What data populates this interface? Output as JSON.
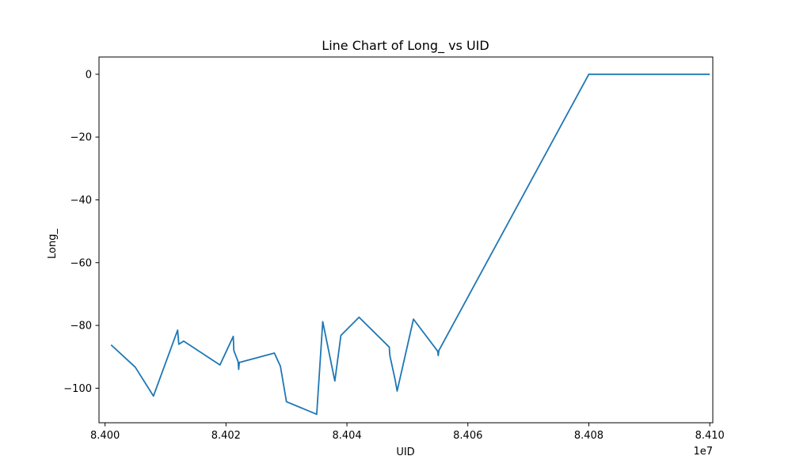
{
  "chart_data": {
    "type": "line",
    "title": "Line Chart of Long_ vs UID",
    "xlabel": "UID",
    "ylabel": "Long_",
    "x_offset_label": "1e7",
    "xlim": [
      8399900,
      8410050
    ],
    "ylim": [
      -111,
      5.5
    ],
    "x_ticks": [
      8400000,
      8402000,
      8404000,
      8406000,
      8408000,
      8410000
    ],
    "x_tick_labels": [
      "8.400",
      "8.402",
      "8.404",
      "8.406",
      "8.408",
      "8.410"
    ],
    "y_ticks": [
      0,
      -20,
      -40,
      -60,
      -80,
      -100
    ],
    "y_tick_labels": [
      "0",
      "−20",
      "−40",
      "−60",
      "−80",
      "−100"
    ],
    "grid": false,
    "series": [
      {
        "color": "#1f77b4",
        "points": [
          [
            8400100,
            -86.2
          ],
          [
            8400500,
            -93.3
          ],
          [
            8400800,
            -102.5
          ],
          [
            8401200,
            -81.5
          ],
          [
            8401220,
            -86.0
          ],
          [
            8401300,
            -85.0
          ],
          [
            8401900,
            -92.6
          ],
          [
            8402120,
            -83.5
          ],
          [
            8402130,
            -88.0
          ],
          [
            8402200,
            -91.5
          ],
          [
            8402210,
            -94.0
          ],
          [
            8402220,
            -91.8
          ],
          [
            8402800,
            -88.8
          ],
          [
            8402900,
            -93.0
          ],
          [
            8403000,
            -104.3
          ],
          [
            8403500,
            -108.3
          ],
          [
            8403600,
            -78.8
          ],
          [
            8403800,
            -97.7
          ],
          [
            8403900,
            -83.2
          ],
          [
            8404200,
            -77.4
          ],
          [
            8404700,
            -86.9
          ],
          [
            8404710,
            -89.6
          ],
          [
            8404800,
            -97.6
          ],
          [
            8404830,
            -100.9
          ],
          [
            8405100,
            -78.0
          ],
          [
            8405500,
            -88.2
          ],
          [
            8405510,
            -89.6
          ],
          [
            8405520,
            -88.0
          ],
          [
            8408000,
            0
          ],
          [
            8410000,
            0
          ]
        ]
      }
    ]
  }
}
